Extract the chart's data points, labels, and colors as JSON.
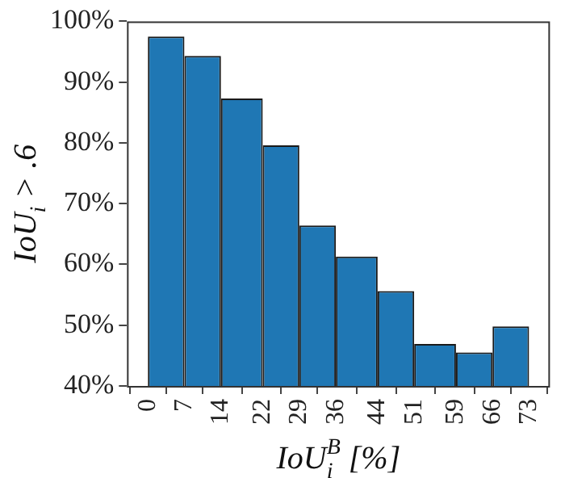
{
  "chart_data": {
    "type": "histogram",
    "xlabel": "IoU$_{i}$$^{B}$ [%]",
    "ylabel": "IoU$_{i}$ > .6",
    "bins": [
      0,
      7,
      14,
      22,
      29,
      36,
      44,
      51,
      59,
      66,
      73
    ],
    "values": [
      97.5,
      94.3,
      87.3,
      79.6,
      66.4,
      61.3,
      55.6,
      46.9,
      45.5,
      49.8
    ],
    "color": "#1f77b4",
    "xlim": [
      -4,
      77
    ],
    "xticks": [
      0,
      7,
      14,
      22,
      29,
      36,
      44,
      51,
      59,
      66,
      73
    ],
    "ylim": [
      40,
      100
    ],
    "yticks": [
      {
        "value": 40,
        "label": "40%"
      },
      {
        "value": 50,
        "label": "50%"
      },
      {
        "value": 60,
        "label": "60%"
      },
      {
        "value": 70,
        "label": "70%"
      },
      {
        "value": 80,
        "label": "80%"
      },
      {
        "value": 90,
        "label": "90%"
      },
      {
        "value": 100,
        "label": "100%"
      }
    ],
    "grid": false,
    "legend": false
  }
}
